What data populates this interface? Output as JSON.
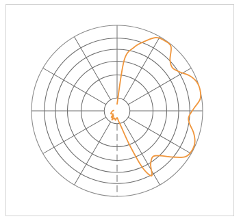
{
  "chart_data": {
    "type": "line",
    "subtype": "polar",
    "title": "",
    "angle_unit": "degrees",
    "angle_ticks": [
      0,
      30,
      60,
      90,
      120,
      150,
      180,
      210,
      240,
      270,
      300,
      330
    ],
    "radial_ticks": [
      0.15,
      0.42,
      0.58,
      0.72,
      0.85,
      1.0
    ],
    "rlim": [
      0,
      1
    ],
    "grid": true,
    "grid_style": "radial spokes every 30 degrees, concentric rings",
    "series": [
      {
        "color": "#f0963c",
        "theta": [
          0,
          8,
          15,
          22,
          28,
          34,
          40,
          46,
          52,
          58,
          64,
          70,
          76,
          82,
          88,
          95,
          100,
          106,
          112,
          118,
          124,
          130,
          136,
          142,
          148,
          152,
          156,
          160,
          166,
          172,
          180,
          190,
          200,
          210,
          216,
          222,
          230,
          245,
          262,
          270,
          276
        ],
        "r": [
          0.08,
          0.6,
          0.77,
          0.88,
          0.97,
          0.99,
          0.98,
          0.86,
          0.82,
          0.86,
          0.94,
          0.99,
          1.0,
          0.98,
          0.9,
          0.84,
          0.86,
          0.93,
          0.98,
          0.99,
          0.96,
          0.84,
          0.73,
          0.68,
          0.74,
          0.86,
          0.72,
          0.42,
          0.18,
          0.12,
          0.08,
          0.11,
          0.09,
          0.12,
          0.07,
          0.1,
          0.06,
          0.08,
          0.06,
          0.05,
          0.04
        ]
      }
    ]
  }
}
